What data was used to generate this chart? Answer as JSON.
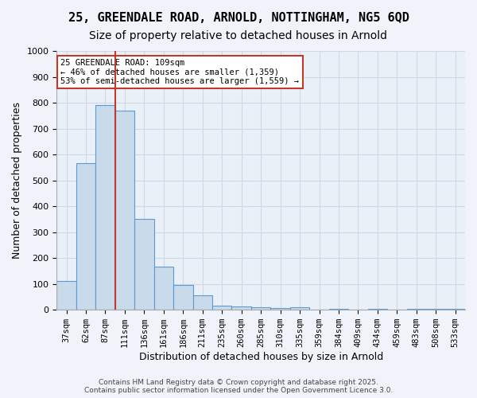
{
  "title1": "25, GREENDALE ROAD, ARNOLD, NOTTINGHAM, NG5 6QD",
  "title2": "Size of property relative to detached houses in Arnold",
  "xlabel": "Distribution of detached houses by size in Arnold",
  "ylabel": "Number of detached properties",
  "categories": [
    "37sqm",
    "62sqm",
    "87sqm",
    "111sqm",
    "136sqm",
    "161sqm",
    "186sqm",
    "211sqm",
    "235sqm",
    "260sqm",
    "285sqm",
    "310sqm",
    "335sqm",
    "359sqm",
    "384sqm",
    "409sqm",
    "434sqm",
    "459sqm",
    "483sqm",
    "508sqm",
    "533sqm"
  ],
  "values": [
    110,
    565,
    790,
    770,
    350,
    168,
    97,
    55,
    17,
    12,
    10,
    8,
    10,
    0,
    4,
    0,
    5,
    0,
    5,
    5,
    5
  ],
  "bar_color": "#c9daea",
  "bar_edge_color": "#5b9bd5",
  "vline_x": 3,
  "vline_color": "#c0392b",
  "annotation_text": "25 GREENDALE ROAD: 109sqm\n← 46% of detached houses are smaller (1,359)\n53% of semi-detached houses are larger (1,559) →",
  "annotation_box_color": "#ffffff",
  "annotation_box_edge": "#c0392b",
  "ylim": [
    0,
    1000
  ],
  "yticks": [
    0,
    100,
    200,
    300,
    400,
    500,
    600,
    700,
    800,
    900,
    1000
  ],
  "grid_color": "#d0d8e4",
  "background_color": "#eaf0f8",
  "footer": "Contains HM Land Registry data © Crown copyright and database right 2025.\nContains public sector information licensed under the Open Government Licence 3.0.",
  "title1_fontsize": 11,
  "title2_fontsize": 10,
  "xlabel_fontsize": 9,
  "ylabel_fontsize": 9
}
